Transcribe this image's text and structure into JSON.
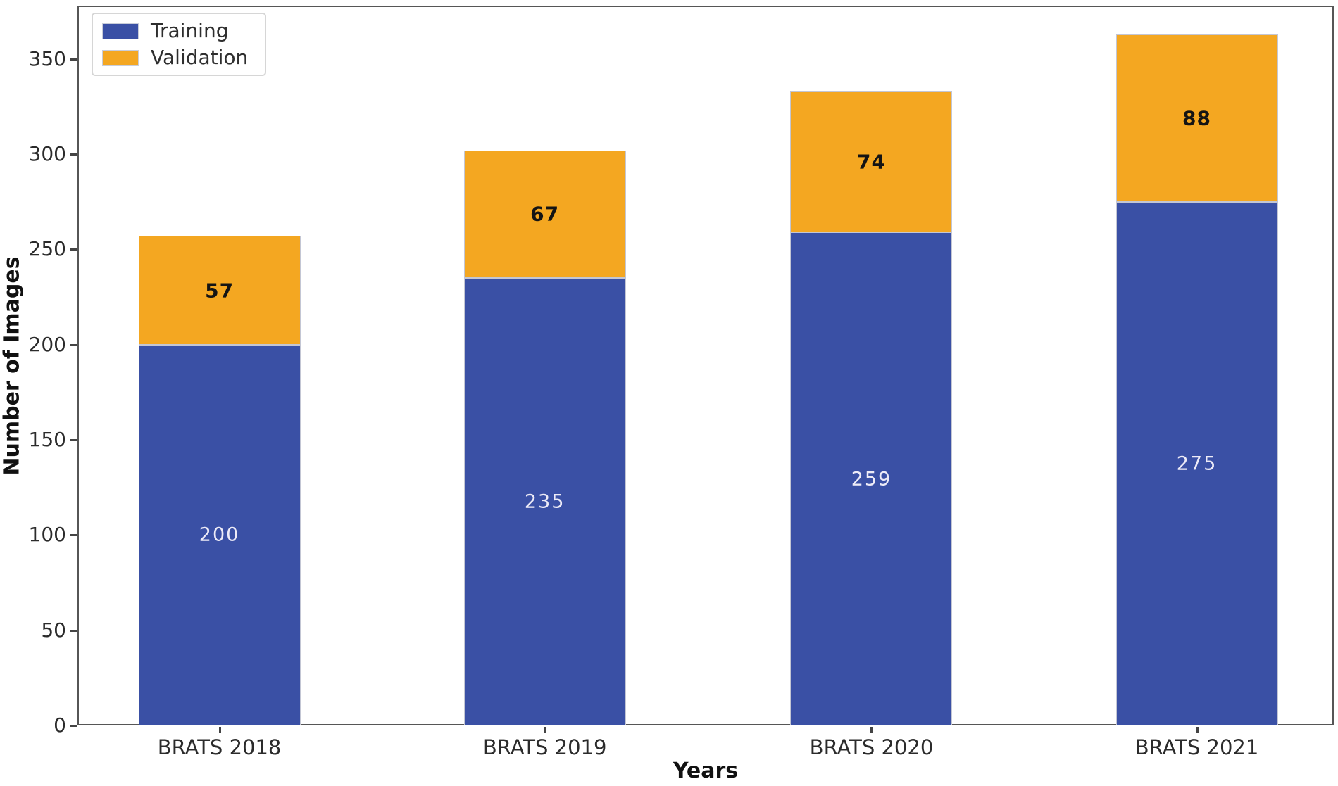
{
  "figure": {
    "x_axis_label": "Years",
    "y_axis_label": "Number of Images"
  },
  "legend": {
    "items": [
      {
        "label": "Training",
        "color": "#3a50a5"
      },
      {
        "label": "Validation",
        "color": "#f4a721"
      }
    ]
  },
  "chart_data": {
    "type": "bar",
    "stacked": true,
    "title": "",
    "xlabel": "Years",
    "ylabel": "Number of Images",
    "categories": [
      "BRATS 2018",
      "BRATS 2019",
      "BRATS 2020",
      "BRATS 2021"
    ],
    "series": [
      {
        "name": "Training",
        "color": "#3a50a5",
        "label_color": "#edebf7",
        "values": [
          200,
          235,
          259,
          275
        ]
      },
      {
        "name": "Validation",
        "color": "#f4a721",
        "label_color": "#141414",
        "values": [
          57,
          67,
          74,
          88
        ]
      }
    ],
    "totals": [
      257,
      302,
      333,
      363
    ],
    "ylim": [
      0,
      378
    ],
    "yticks": [
      0,
      50,
      100,
      150,
      200,
      250,
      300,
      350
    ],
    "grid": false,
    "legend_position": "upper left",
    "bar_labels_shown": true
  }
}
